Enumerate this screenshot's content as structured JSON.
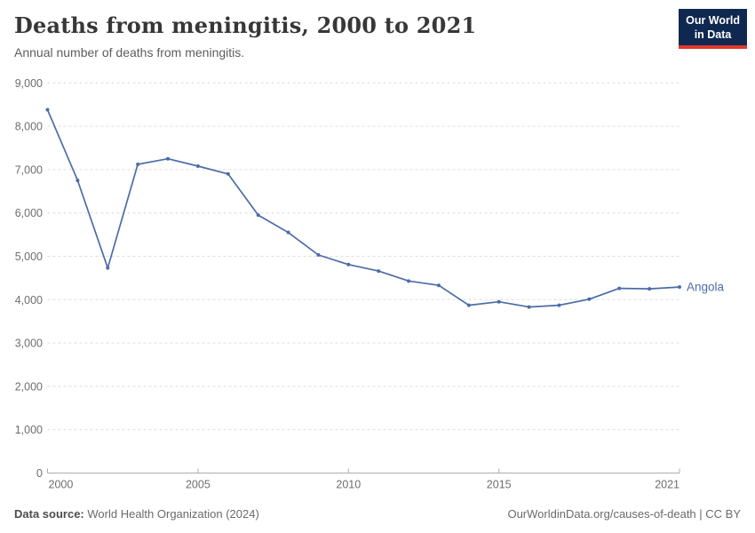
{
  "header": {
    "title": "Deaths from meningitis, 2000 to 2021",
    "subtitle": "Annual number of deaths from meningitis.",
    "logo": {
      "line1": "Our World",
      "line2": "in Data"
    }
  },
  "chart_data": {
    "type": "line",
    "title": "Deaths from meningitis, 2000 to 2021",
    "subtitle": "Annual number of deaths from meningitis.",
    "x": [
      2000,
      2001,
      2002,
      2003,
      2004,
      2005,
      2006,
      2007,
      2008,
      2009,
      2010,
      2011,
      2012,
      2013,
      2014,
      2015,
      2016,
      2017,
      2018,
      2019,
      2020,
      2021
    ],
    "series": [
      {
        "name": "Angola",
        "color": "#4C6CA8",
        "values": [
          8380,
          6750,
          4730,
          7120,
          7250,
          7080,
          6900,
          5950,
          5550,
          5030,
          4810,
          4660,
          4430,
          4330,
          3870,
          3950,
          3830,
          3870,
          4010,
          4260,
          4250,
          4290
        ]
      }
    ],
    "xlabel": "",
    "ylabel": "",
    "xlim": [
      2000,
      2021
    ],
    "ylim": [
      0,
      9000
    ],
    "yticks": [
      0,
      1000,
      2000,
      3000,
      4000,
      5000,
      6000,
      7000,
      8000,
      9000
    ],
    "xticks": [
      2000,
      2005,
      2010,
      2015,
      2021
    ],
    "grid": "horizontal-dashed",
    "legend_position": "line-end-label",
    "end_label": "Angola"
  },
  "footer": {
    "source_label": "Data source:",
    "source_value": "World Health Organization (2024)",
    "attribution": "OurWorldinData.org/causes-of-death | CC BY"
  },
  "colors": {
    "line": "#4C6CA8",
    "grid": "#dcdcdc",
    "axis": "#adadad",
    "axis_text": "#6e6e6e",
    "logo_bg": "#0f2850",
    "logo_accent": "#e1372d"
  }
}
